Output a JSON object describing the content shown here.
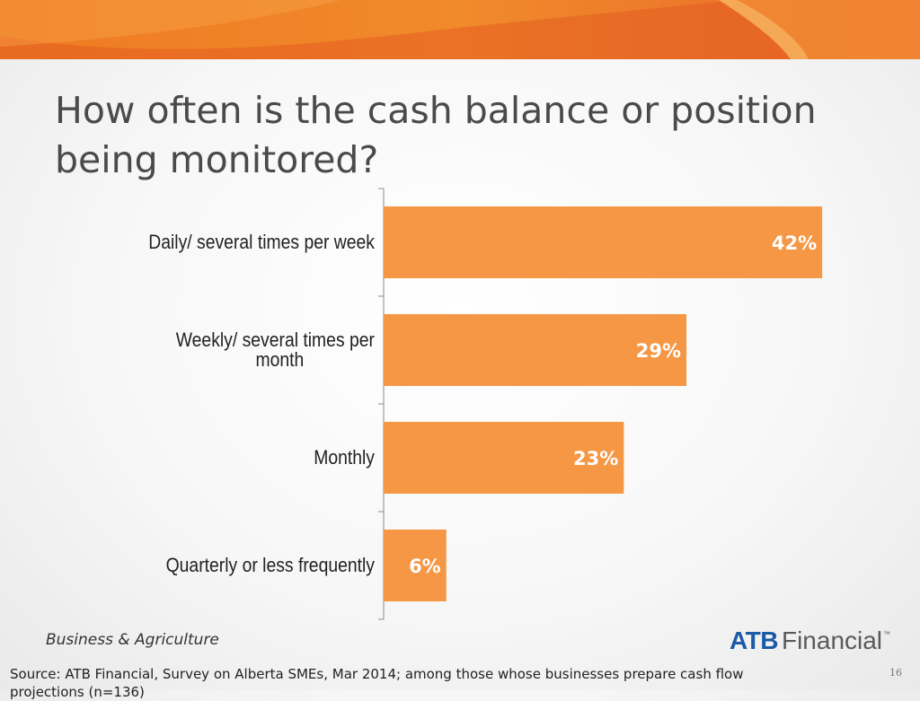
{
  "title": "How often is the cash balance or position being monitored?",
  "footer": {
    "division": "Business & Agriculture",
    "logo_primary": "ATB",
    "logo_secondary": "Financial",
    "logo_mark": "™",
    "source": "Source:  ATB Financial, Survey on Alberta SMEs, Mar 2014; among those whose businesses prepare cash flow projections (n=136)",
    "page_number": "16"
  },
  "colors": {
    "bar": "#f59745",
    "bar_label": "#ffffff",
    "banner_dark": "#e35d20",
    "banner_light": "#f48a2a",
    "title": "#4a4a4a"
  },
  "chart_data": {
    "type": "bar",
    "orientation": "horizontal",
    "categories": [
      "Daily/ several times per week",
      "Weekly/ several times per month",
      "Monthly",
      "Quarterly or less frequently"
    ],
    "category_lines": [
      [
        "Daily/ several times per week"
      ],
      [
        "Weekly/ several times per",
        "month"
      ],
      [
        "Monthly"
      ],
      [
        "Quarterly or less frequently"
      ]
    ],
    "values": [
      42,
      29,
      23,
      6
    ],
    "data_labels": [
      "42%",
      "29%",
      "23%",
      "6%"
    ],
    "xlim": [
      0,
      45
    ],
    "grid": false,
    "legend": "none"
  }
}
